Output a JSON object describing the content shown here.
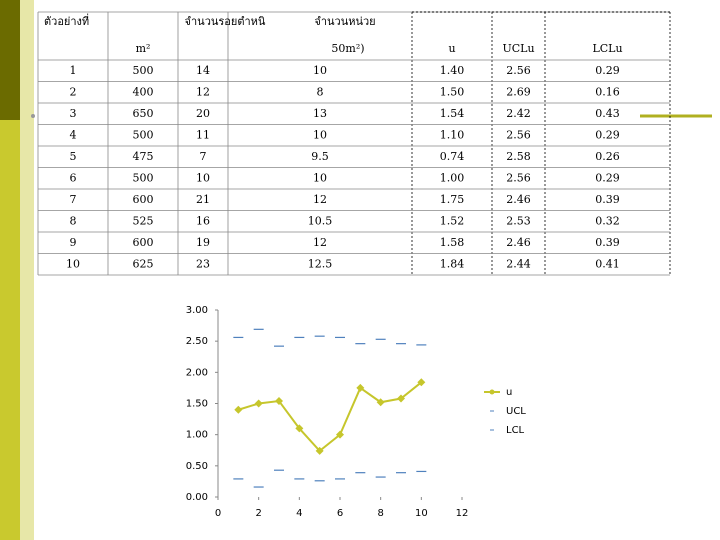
{
  "table": {
    "header": [
      "ตัวอย่างที่",
      "จำนวนรอยตำหนิ",
      "จำนวนหน่วย"
    ],
    "subheader": [
      "m²",
      "50m²)",
      "u",
      "UCLu",
      "LCLu"
    ],
    "rows": [
      [
        "1",
        "500",
        "14",
        "10",
        "1.40",
        "2.56",
        "0.29"
      ],
      [
        "2",
        "400",
        "12",
        "8",
        "1.50",
        "2.69",
        "0.16"
      ],
      [
        "3",
        "650",
        "20",
        "13",
        "1.54",
        "2.42",
        "0.43"
      ],
      [
        "4",
        "500",
        "11",
        "10",
        "1.10",
        "2.56",
        "0.29"
      ],
      [
        "5",
        "475",
        "7",
        "9.5",
        "0.74",
        "2.58",
        "0.26"
      ],
      [
        "6",
        "500",
        "10",
        "10",
        "1.00",
        "2.56",
        "0.29"
      ],
      [
        "7",
        "600",
        "21",
        "12",
        "1.75",
        "2.46",
        "0.39"
      ],
      [
        "8",
        "525",
        "16",
        "10.5",
        "1.52",
        "2.53",
        "0.32"
      ],
      [
        "9",
        "600",
        "19",
        "12",
        "1.58",
        "2.46",
        "0.39"
      ],
      [
        "10",
        "625",
        "23",
        "12.5",
        "1.84",
        "2.44",
        "0.41"
      ]
    ]
  },
  "chart_data": {
    "type": "line",
    "x": [
      1,
      2,
      3,
      4,
      5,
      6,
      7,
      8,
      9,
      10
    ],
    "series": [
      {
        "name": "u",
        "color": "#c6c62c",
        "style": "line",
        "values": [
          1.4,
          1.5,
          1.54,
          1.1,
          0.74,
          1.0,
          1.75,
          1.52,
          1.58,
          1.84
        ]
      },
      {
        "name": "UCL",
        "color": "#4f81bd",
        "style": "dash",
        "values": [
          2.56,
          2.69,
          2.42,
          2.56,
          2.58,
          2.56,
          2.46,
          2.53,
          2.46,
          2.44
        ]
      },
      {
        "name": "LCL",
        "color": "#4f81bd",
        "style": "dash",
        "values": [
          0.29,
          0.16,
          0.43,
          0.29,
          0.26,
          0.29,
          0.39,
          0.32,
          0.39,
          0.41
        ]
      }
    ],
    "xlim": [
      0,
      12
    ],
    "xticks": [
      0,
      2,
      4,
      6,
      8,
      10,
      12
    ],
    "ylim": [
      0,
      3
    ],
    "yticks": [
      {
        "value": 0,
        "label": "0.00"
      },
      {
        "value": 0.5,
        "label": "0.50"
      },
      {
        "value": 1,
        "label": "1.00"
      },
      {
        "value": 1.5,
        "label": "1.50"
      },
      {
        "value": 2,
        "label": "2.00"
      },
      {
        "value": 2.5,
        "label": "2.50"
      },
      {
        "value": 3,
        "label": "3.00"
      }
    ],
    "legend": "right"
  }
}
